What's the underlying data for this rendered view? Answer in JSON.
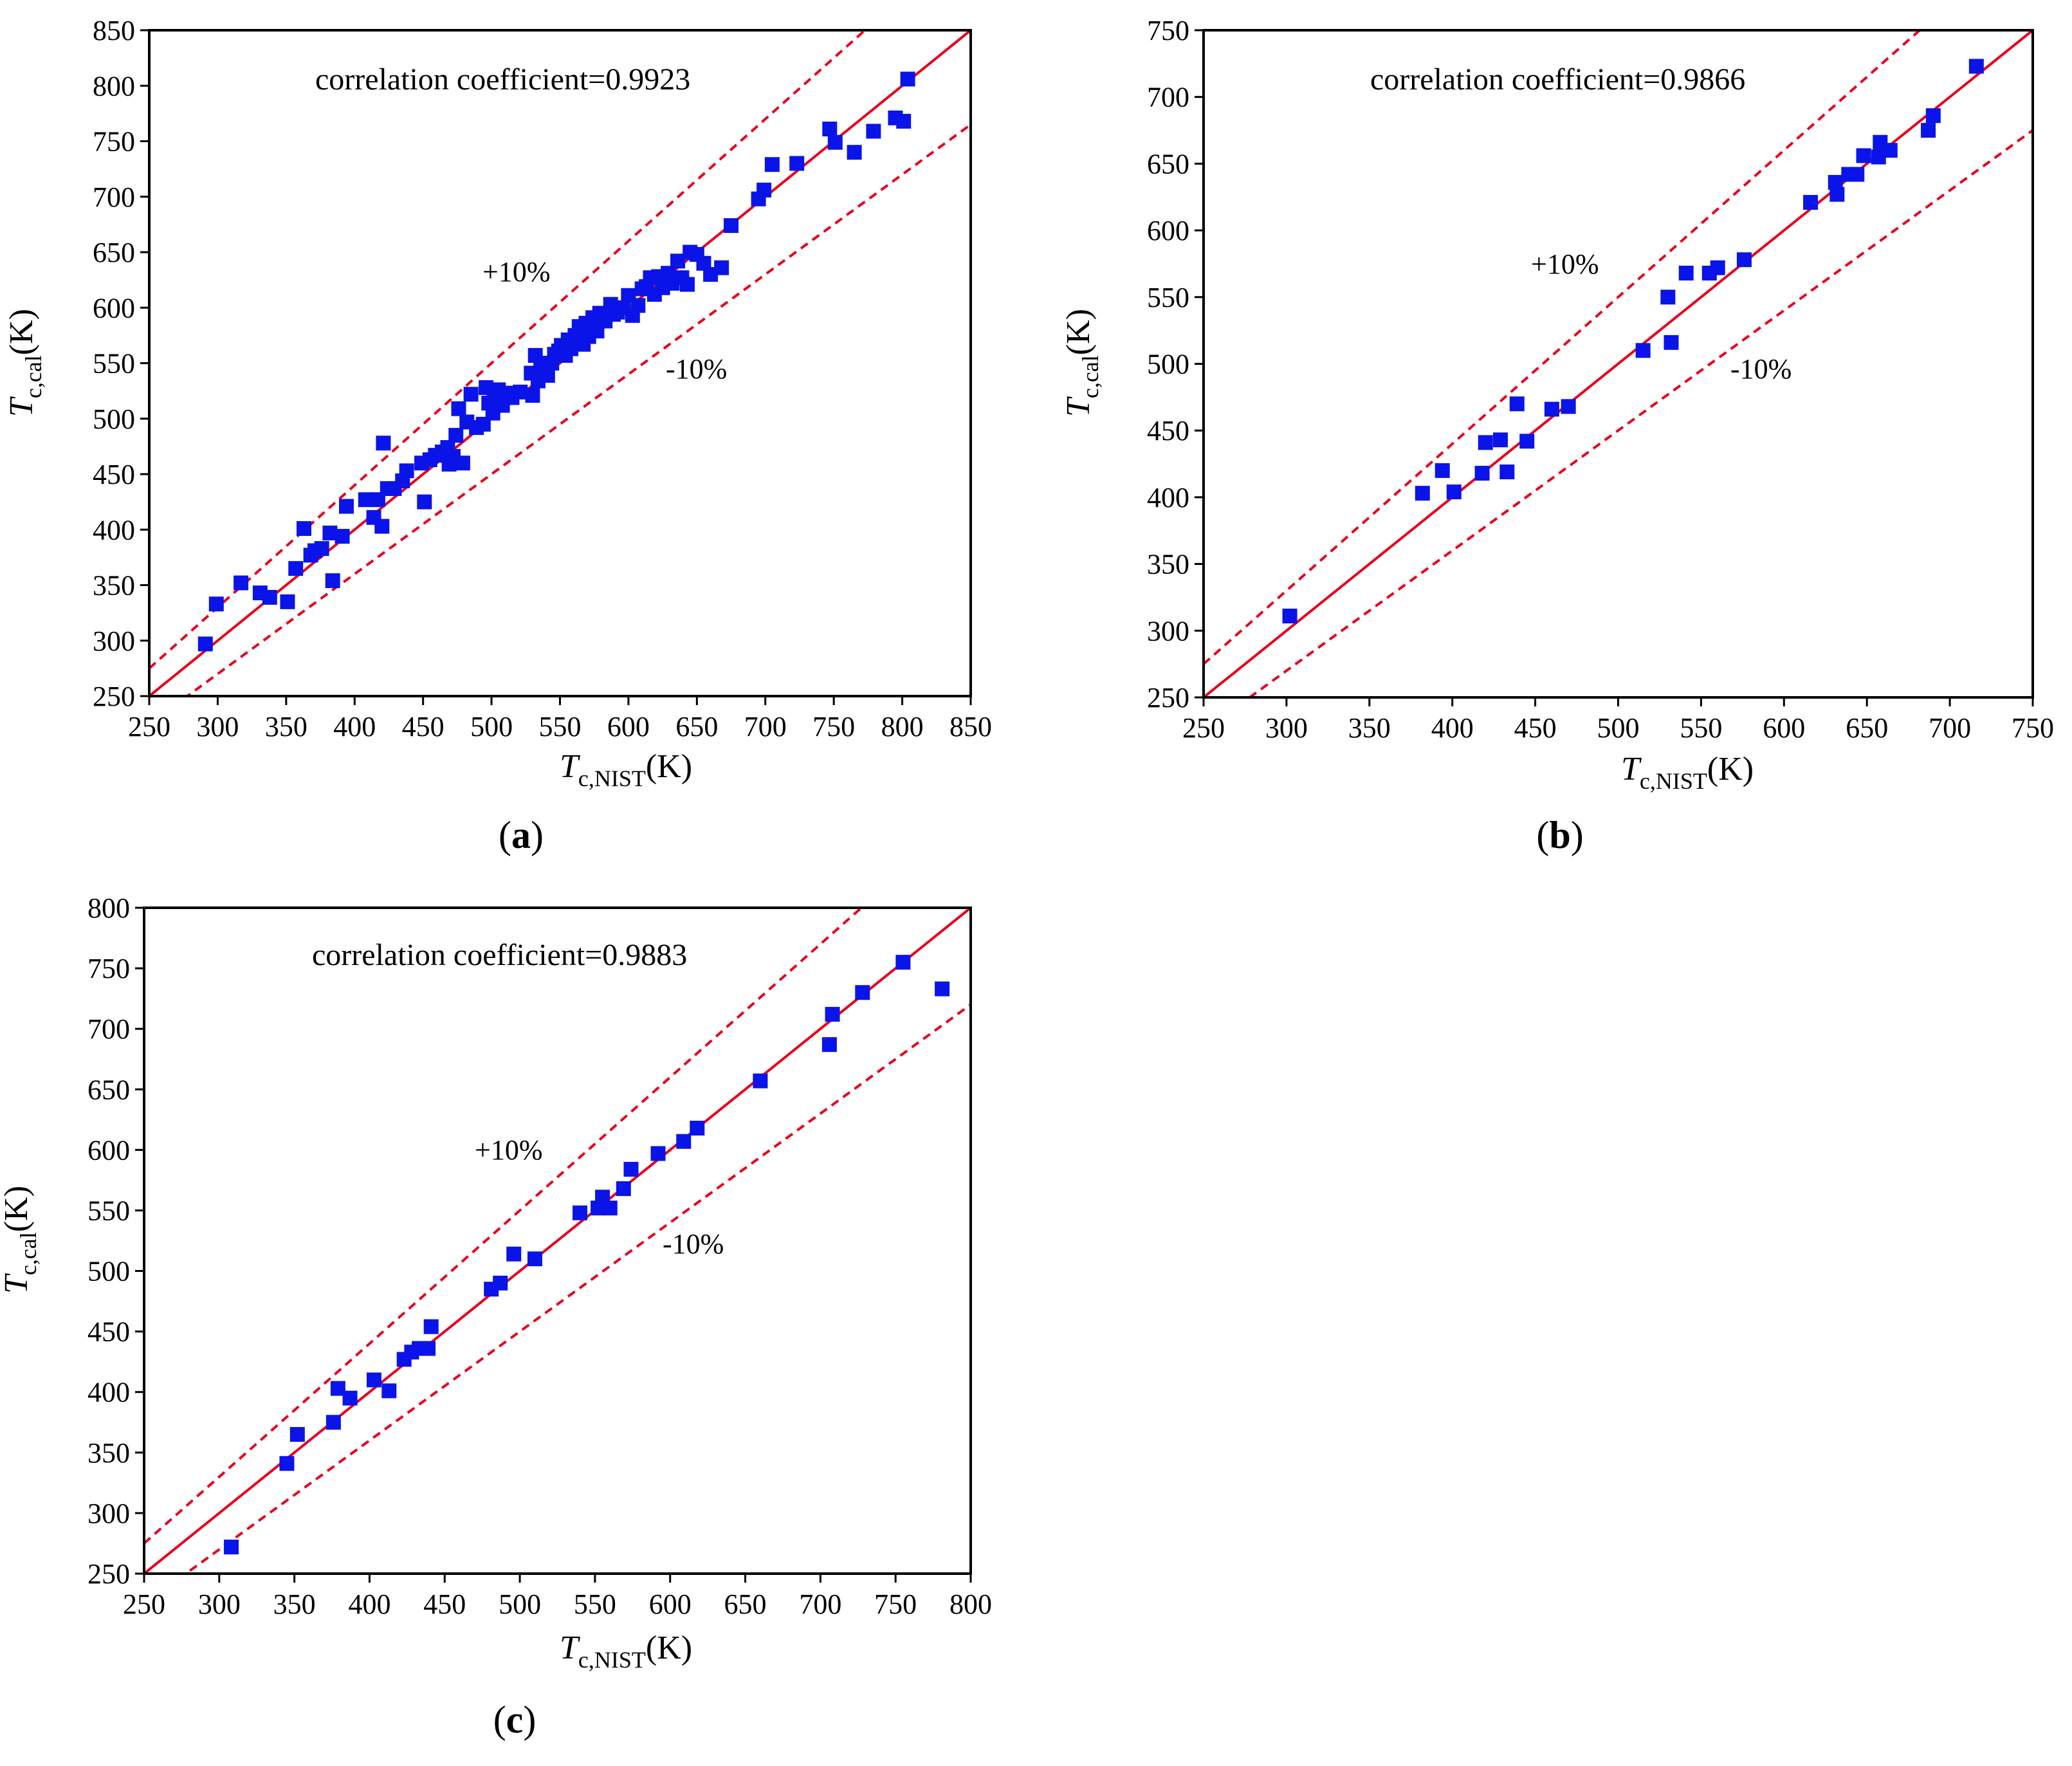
{
  "chart_data": [
    {
      "type": "scatter",
      "panel": "(a)",
      "panel_letter": "a",
      "title": "",
      "xlabel": {
        "main": "T",
        "sub": "c,NIST",
        "unit": "(K)"
      },
      "ylabel": {
        "main": "T",
        "sub": "c,cal",
        "unit": "(K)"
      },
      "xlim": [
        250,
        850
      ],
      "ylim": [
        250,
        850
      ],
      "ticks": [
        250,
        300,
        350,
        400,
        450,
        500,
        550,
        600,
        650,
        700,
        750,
        800,
        850
      ],
      "tick_labels": [
        "250",
        "300",
        "350",
        "400",
        "450",
        "500",
        "550",
        "600",
        "650",
        "700",
        "750",
        "800",
        "850"
      ],
      "annotation": "correlation coefficient=0.9923",
      "band_labels": {
        "upper": "+10%",
        "lower": "-10%"
      },
      "lines": [
        {
          "name": "y = x",
          "slope": 1.0,
          "style": "solid",
          "color": "#e8001c"
        },
        {
          "name": "+10%",
          "slope": 1.1,
          "style": "dashed",
          "color": "#e8001c"
        },
        {
          "name": "-10%",
          "slope": 0.9,
          "style": "dashed",
          "color": "#e8001c"
        }
      ],
      "marker_color": "#0a14e8",
      "points": [
        [
          291,
          297
        ],
        [
          299,
          333
        ],
        [
          317,
          352
        ],
        [
          331,
          343
        ],
        [
          338,
          339
        ],
        [
          351,
          335
        ],
        [
          357,
          365
        ],
        [
          363,
          401
        ],
        [
          368,
          377
        ],
        [
          371,
          381
        ],
        [
          376,
          383
        ],
        [
          382,
          397
        ],
        [
          384,
          354
        ],
        [
          391,
          394
        ],
        [
          394,
          421
        ],
        [
          408,
          427
        ],
        [
          414,
          411
        ],
        [
          417,
          427
        ],
        [
          420,
          403
        ],
        [
          421,
          478
        ],
        [
          424,
          437
        ],
        [
          429,
          437
        ],
        [
          435,
          444
        ],
        [
          438,
          453
        ],
        [
          449,
          460
        ],
        [
          451,
          425
        ],
        [
          455,
          463
        ],
        [
          459,
          467
        ],
        [
          464,
          470
        ],
        [
          468,
          474
        ],
        [
          469,
          459
        ],
        [
          472,
          466
        ],
        [
          474,
          485
        ],
        [
          476,
          509
        ],
        [
          479,
          460
        ],
        [
          482,
          497
        ],
        [
          485,
          522
        ],
        [
          489,
          492
        ],
        [
          494,
          495
        ],
        [
          496,
          528
        ],
        [
          498,
          514
        ],
        [
          501,
          505
        ],
        [
          502,
          520
        ],
        [
          505,
          526
        ],
        [
          508,
          512
        ],
        [
          511,
          523
        ],
        [
          515,
          519
        ],
        [
          521,
          524
        ],
        [
          529,
          541
        ],
        [
          530,
          521
        ],
        [
          532,
          557
        ],
        [
          534,
          534
        ],
        [
          536,
          550
        ],
        [
          538,
          545
        ],
        [
          541,
          539
        ],
        [
          544,
          550
        ],
        [
          546,
          558
        ],
        [
          549,
          561
        ],
        [
          551,
          566
        ],
        [
          554,
          557
        ],
        [
          556,
          571
        ],
        [
          558,
          563
        ],
        [
          561,
          575
        ],
        [
          564,
          583
        ],
        [
          567,
          567
        ],
        [
          569,
          586
        ],
        [
          571,
          574
        ],
        [
          574,
          591
        ],
        [
          577,
          579
        ],
        [
          579,
          595
        ],
        [
          583,
          588
        ],
        [
          587,
          603
        ],
        [
          589,
          594
        ],
        [
          592,
          596
        ],
        [
          596,
          600
        ],
        [
          600,
          611
        ],
        [
          603,
          593
        ],
        [
          607,
          602
        ],
        [
          610,
          617
        ],
        [
          613,
          619
        ],
        [
          616,
          627
        ],
        [
          619,
          612
        ],
        [
          622,
          628
        ],
        [
          625,
          618
        ],
        [
          629,
          631
        ],
        [
          632,
          622
        ],
        [
          636,
          642
        ],
        [
          639,
          627
        ],
        [
          643,
          621
        ],
        [
          645,
          650
        ],
        [
          650,
          648
        ],
        [
          655,
          640
        ],
        [
          660,
          630
        ],
        [
          668,
          636
        ],
        [
          675,
          674
        ],
        [
          695,
          698
        ],
        [
          699,
          706
        ],
        [
          705,
          729
        ],
        [
          723,
          730
        ],
        [
          747,
          761
        ],
        [
          751,
          749
        ],
        [
          765,
          740
        ],
        [
          779,
          759
        ],
        [
          795,
          771
        ],
        [
          801,
          768
        ],
        [
          804,
          806
        ]
      ]
    },
    {
      "type": "scatter",
      "panel": "(b)",
      "panel_letter": "b",
      "title": "",
      "xlabel": {
        "main": "T",
        "sub": "c,NIST",
        "unit": "(K)"
      },
      "ylabel": {
        "main": "T",
        "sub": "c,cal",
        "unit": "(K)"
      },
      "xlim": [
        250,
        750
      ],
      "ylim": [
        250,
        750
      ],
      "ticks": [
        250,
        300,
        350,
        400,
        450,
        500,
        550,
        600,
        650,
        700,
        750
      ],
      "tick_labels": [
        "250",
        "300",
        "350",
        "400",
        "450",
        "500",
        "550",
        "600",
        "650",
        "700",
        "750"
      ],
      "annotation": "correlation coefficient=0.9866",
      "band_labels": {
        "upper": "+10%",
        "lower": "-10%"
      },
      "lines": [
        {
          "name": "y = x",
          "slope": 1.0,
          "style": "solid",
          "color": "#e8001c"
        },
        {
          "name": "+10%",
          "slope": 1.1,
          "style": "dashed",
          "color": "#e8001c"
        },
        {
          "name": "-10%",
          "slope": 0.9,
          "style": "dashed",
          "color": "#e8001c"
        }
      ],
      "marker_color": "#0a14e8",
      "points": [
        [
          302,
          311
        ],
        [
          382,
          403
        ],
        [
          394,
          420
        ],
        [
          401,
          404
        ],
        [
          418,
          418
        ],
        [
          420,
          441
        ],
        [
          429,
          443
        ],
        [
          433,
          419
        ],
        [
          439,
          470
        ],
        [
          445,
          442
        ],
        [
          460,
          466
        ],
        [
          470,
          468
        ],
        [
          515,
          510
        ],
        [
          530,
          550
        ],
        [
          532,
          516
        ],
        [
          541,
          568
        ],
        [
          555,
          568
        ],
        [
          560,
          572
        ],
        [
          576,
          578
        ],
        [
          616,
          621
        ],
        [
          631,
          636
        ],
        [
          632,
          627
        ],
        [
          639,
          642
        ],
        [
          644,
          642
        ],
        [
          648,
          656
        ],
        [
          657,
          655
        ],
        [
          658,
          666
        ],
        [
          664,
          660
        ],
        [
          687,
          675
        ],
        [
          690,
          686
        ],
        [
          716,
          723
        ]
      ]
    },
    {
      "type": "scatter",
      "panel": "(c)",
      "panel_letter": "c",
      "title": "",
      "xlabel": {
        "main": "T",
        "sub": "c,NIST",
        "unit": "(K)"
      },
      "ylabel": {
        "main": "T",
        "sub": "c,cal",
        "unit": "(K)"
      },
      "xlim": [
        250,
        800
      ],
      "ylim": [
        250,
        800
      ],
      "ticks": [
        250,
        300,
        350,
        400,
        450,
        500,
        550,
        600,
        650,
        700,
        750,
        800
      ],
      "tick_labels": [
        "250",
        "300",
        "350",
        "400",
        "450",
        "500",
        "550",
        "600",
        "650",
        "700",
        "750",
        "800"
      ],
      "annotation": "correlation coefficient=0.9883",
      "band_labels": {
        "upper": "+10%",
        "lower": "-10%"
      },
      "lines": [
        {
          "name": "y = x",
          "slope": 1.0,
          "style": "solid",
          "color": "#e8001c"
        },
        {
          "name": "+10%",
          "slope": 1.1,
          "style": "dashed",
          "color": "#e8001c"
        },
        {
          "name": "-10%",
          "slope": 0.9,
          "style": "dashed",
          "color": "#e8001c"
        }
      ],
      "marker_color": "#0a14e8",
      "points": [
        [
          308,
          272
        ],
        [
          345,
          341
        ],
        [
          352,
          365
        ],
        [
          376,
          375
        ],
        [
          379,
          403
        ],
        [
          387,
          395
        ],
        [
          403,
          410
        ],
        [
          413,
          401
        ],
        [
          423,
          427
        ],
        [
          428,
          433
        ],
        [
          433,
          436
        ],
        [
          439,
          436
        ],
        [
          441,
          454
        ],
        [
          481,
          485
        ],
        [
          487,
          490
        ],
        [
          496,
          514
        ],
        [
          510,
          510
        ],
        [
          540,
          548
        ],
        [
          552,
          552
        ],
        [
          555,
          561
        ],
        [
          560,
          552
        ],
        [
          569,
          568
        ],
        [
          574,
          584
        ],
        [
          592,
          597
        ],
        [
          609,
          607
        ],
        [
          618,
          618
        ],
        [
          660,
          657
        ],
        [
          706,
          687
        ],
        [
          708,
          712
        ],
        [
          728,
          730
        ],
        [
          755,
          755
        ],
        [
          781,
          733
        ]
      ]
    }
  ]
}
